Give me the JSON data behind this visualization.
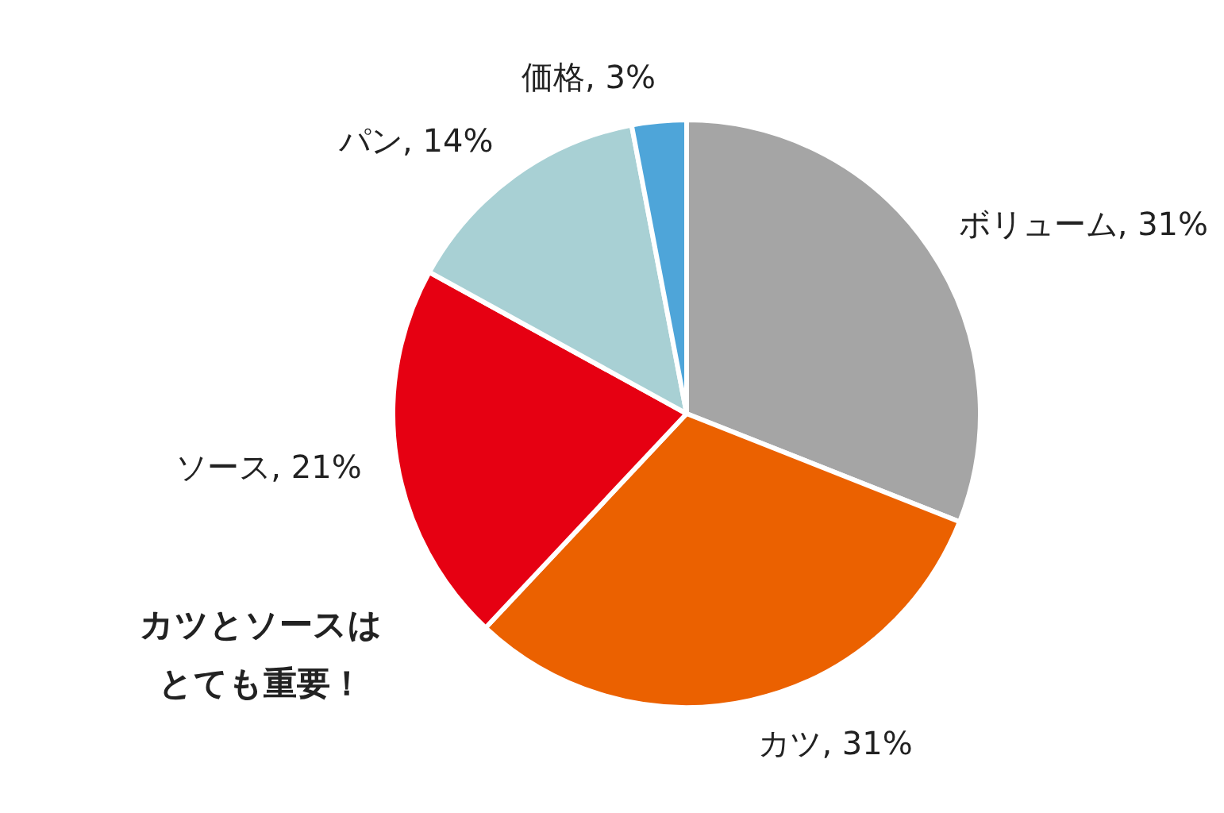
{
  "chart_data": {
    "type": "pie",
    "categories": [
      "ボリューム",
      "カツ",
      "ソース",
      "パン",
      "価格"
    ],
    "values": [
      31,
      31,
      21,
      14,
      3
    ],
    "value_labels": [
      "31%",
      "31%",
      "21%",
      "14%",
      "3%"
    ],
    "colors": [
      "#a5a5a5",
      "#eb6100",
      "#e60012",
      "#a8d0d4",
      "#4ea5d9"
    ],
    "annotations": [
      "カツとソースは",
      "とても重要！"
    ]
  }
}
